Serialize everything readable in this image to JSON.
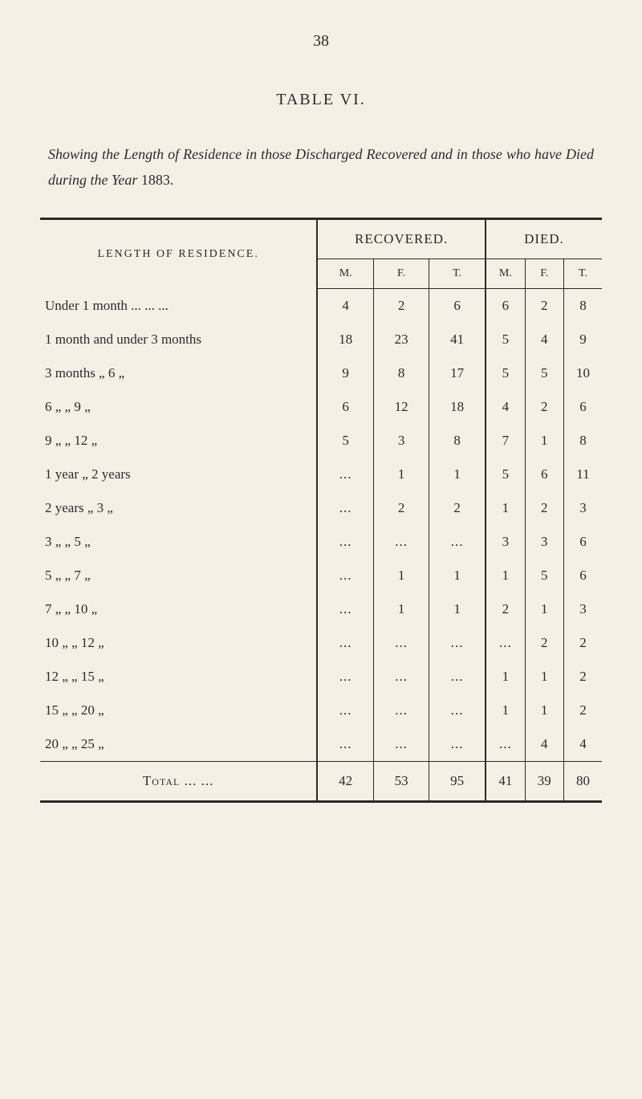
{
  "page_number": "38",
  "table_title": "TABLE VI.",
  "caption_prefix": "Showing the Length of Residence in those Discharged Recovered and in those who have Died during the Year",
  "caption_year": "1883.",
  "header": {
    "length_of_residence": "LENGTH OF RESIDENCE.",
    "recovered": "RECOVERED.",
    "died": "DIED.",
    "m": "M.",
    "f": "F.",
    "t": "T."
  },
  "rows": [
    {
      "label": "Under 1 month ...  ...  ...",
      "rm": "4",
      "rf": "2",
      "rt": "6",
      "dm": "6",
      "df": "2",
      "dt": "8"
    },
    {
      "label": "1 month and under 3 months",
      "rm": "18",
      "rf": "23",
      "rt": "41",
      "dm": "5",
      "df": "4",
      "dt": "9"
    },
    {
      "label": "3 months    „      6    „",
      "rm": "9",
      "rf": "8",
      "rt": "17",
      "dm": "5",
      "df": "5",
      "dt": "10"
    },
    {
      "label": "6    „       „      9    „",
      "rm": "6",
      "rf": "12",
      "rt": "18",
      "dm": "4",
      "df": "2",
      "dt": "6"
    },
    {
      "label": "9    „       „     12    „",
      "rm": "5",
      "rf": "3",
      "rt": "8",
      "dm": "7",
      "df": "1",
      "dt": "8"
    },
    {
      "label": "1 year       „      2 years",
      "rm": "...",
      "rf": "1",
      "rt": "1",
      "dm": "5",
      "df": "6",
      "dt": "11"
    },
    {
      "label": "2 years      „      3    „",
      "rm": "...",
      "rf": "2",
      "rt": "2",
      "dm": "1",
      "df": "2",
      "dt": "3"
    },
    {
      "label": "3    „       „      5    „",
      "rm": "...",
      "rf": "...",
      "rt": "...",
      "dm": "3",
      "df": "3",
      "dt": "6"
    },
    {
      "label": "5    „       „      7    „",
      "rm": "...",
      "rf": "1",
      "rt": "1",
      "dm": "1",
      "df": "5",
      "dt": "6"
    },
    {
      "label": "7    „       „     10    „",
      "rm": "...",
      "rf": "1",
      "rt": "1",
      "dm": "2",
      "df": "1",
      "dt": "3"
    },
    {
      "label": "10   „       „     12    „",
      "rm": "...",
      "rf": "...",
      "rt": "...",
      "dm": "...",
      "df": "2",
      "dt": "2"
    },
    {
      "label": "12   „       „     15    „",
      "rm": "...",
      "rf": "...",
      "rt": "...",
      "dm": "1",
      "df": "1",
      "dt": "2"
    },
    {
      "label": "15   „       „     20    „",
      "rm": "...",
      "rf": "...",
      "rt": "...",
      "dm": "1",
      "df": "1",
      "dt": "2"
    },
    {
      "label": "20   „       „     25    „",
      "rm": "...",
      "rf": "...",
      "rt": "...",
      "dm": "...",
      "df": "4",
      "dt": "4"
    }
  ],
  "total": {
    "label": "Total    ...  ...",
    "rm": "42",
    "rf": "53",
    "rt": "95",
    "dm": "41",
    "df": "39",
    "dt": "80"
  },
  "styling": {
    "page_bg": "#f5f0e5",
    "text_color": "#2a2a2a",
    "rule_thick": 3,
    "rule_thin": 1,
    "font_family": "Times New Roman",
    "body_fontsize": 17,
    "title_fontsize": 20,
    "caption_fontsize": 18,
    "columns": [
      "label",
      "recovered_m",
      "recovered_f",
      "recovered_t",
      "died_m",
      "died_f",
      "died_t"
    ]
  }
}
